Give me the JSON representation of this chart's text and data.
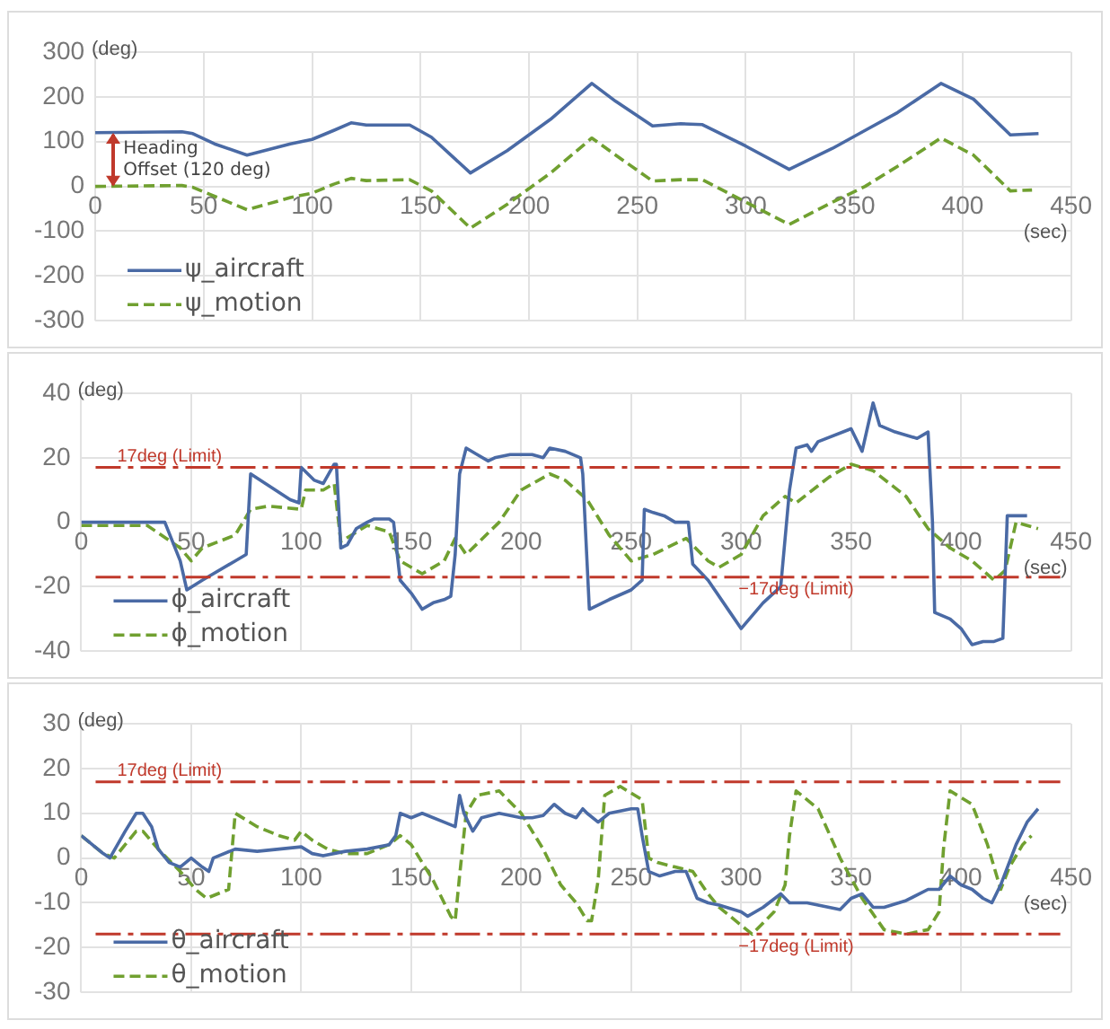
{
  "chart_data": [
    {
      "type": "line",
      "xlabel": "(sec)",
      "ylabel": "(deg)",
      "xlim": [
        0,
        450
      ],
      "xticks": [
        0,
        50,
        100,
        150,
        200,
        250,
        300,
        350,
        400,
        450
      ],
      "ylim": [
        -300,
        300
      ],
      "yticks": [
        -300,
        -200,
        -100,
        0,
        100,
        200,
        300
      ],
      "grid": true,
      "legend": "bottom left",
      "marker": "none",
      "annotations": [
        {
          "text": "Heading Offset (120 deg)",
          "x": 8,
          "y": 120
        }
      ],
      "series": [
        {
          "name": "ψ_aircraft",
          "color": "#4a6aa5",
          "line_style": "solid",
          "x": [
            0,
            40,
            45,
            55,
            70,
            90,
            100,
            110,
            118,
            125,
            145,
            155,
            173,
            190,
            210,
            229,
            240,
            257,
            270,
            280,
            300,
            320,
            340,
            355,
            370,
            390,
            405,
            422,
            435
          ],
          "values": [
            120,
            122,
            118,
            95,
            70,
            95,
            105,
            125,
            142,
            137,
            137,
            110,
            30,
            80,
            150,
            230,
            190,
            135,
            140,
            138,
            90,
            38,
            85,
            125,
            165,
            230,
            195,
            115,
            118
          ]
        },
        {
          "name": "ψ_motion",
          "color": "#70a030",
          "line_style": "dashed",
          "x": [
            0,
            40,
            45,
            70,
            90,
            100,
            110,
            118,
            125,
            145,
            155,
            173,
            190,
            210,
            229,
            240,
            257,
            270,
            280,
            300,
            320,
            340,
            355,
            370,
            390,
            405,
            422,
            432
          ],
          "values": [
            0,
            2,
            -2,
            -52,
            -25,
            -15,
            5,
            18,
            13,
            15,
            -10,
            -93,
            -40,
            30,
            108,
            70,
            12,
            15,
            15,
            -35,
            -85,
            -35,
            0,
            45,
            108,
            70,
            -10,
            -8
          ]
        }
      ]
    },
    {
      "type": "line",
      "xlabel": "(sec)",
      "ylabel": "(deg)",
      "xlim": [
        0,
        450
      ],
      "xticks": [
        0,
        50,
        100,
        150,
        200,
        250,
        300,
        350,
        400,
        450
      ],
      "ylim": [
        -40,
        40
      ],
      "yticks": [
        -40,
        -20,
        0,
        20,
        40
      ],
      "grid": true,
      "legend": "bottom left",
      "marker": "none",
      "ref_lines": [
        {
          "axis": "y",
          "value": 17,
          "label": "17deg (Limit)",
          "color": "#c0392b",
          "line_style": "dashed"
        },
        {
          "axis": "y",
          "value": -17,
          "label": "−17deg (Limit)",
          "color": "#c0392b",
          "line_style": "dashed"
        }
      ],
      "series": [
        {
          "name": "ϕ_aircraft",
          "color": "#4a6aa5",
          "line_style": "solid",
          "x": [
            0,
            38,
            45,
            48,
            55,
            70,
            75,
            77,
            95,
            99,
            100,
            106,
            110,
            115,
            116,
            118,
            121,
            125,
            130,
            133,
            140,
            142,
            145,
            150,
            155,
            160,
            165,
            168,
            170,
            172,
            175,
            180,
            185,
            188,
            195,
            205,
            210,
            213,
            220,
            227,
            228,
            231,
            240,
            250,
            255,
            256,
            260,
            265,
            270,
            276,
            278,
            285,
            295,
            300,
            310,
            318,
            322,
            325,
            330,
            332,
            335,
            350,
            355,
            360,
            363,
            370,
            380,
            385,
            387,
            388,
            395,
            400,
            405,
            410,
            415,
            419,
            421,
            430
          ],
          "values": [
            0,
            0,
            -12,
            -21,
            -18,
            -12,
            -10,
            15,
            7,
            6,
            17,
            13,
            12,
            18,
            18,
            -8,
            -7,
            -2,
            0,
            1,
            1,
            0,
            -18,
            -22,
            -27,
            -25,
            -24,
            -23,
            -10,
            15,
            23,
            21,
            19,
            20,
            21,
            21,
            20,
            23,
            22,
            20,
            15,
            -27,
            -24,
            -21,
            -18,
            4,
            3,
            2,
            0,
            0,
            -13,
            -18,
            -28,
            -33,
            -25,
            -20,
            10,
            23,
            24,
            22,
            25,
            29,
            22,
            37,
            30,
            28,
            26,
            28,
            0,
            -28,
            -30,
            -33,
            -38,
            -37,
            -37,
            -36,
            2,
            2
          ]
        },
        {
          "name": "ϕ_motion",
          "color": "#70a030",
          "line_style": "dashed",
          "x": [
            0,
            30,
            45,
            50,
            55,
            70,
            77,
            85,
            100,
            102,
            110,
            115,
            118,
            130,
            140,
            145,
            155,
            165,
            170,
            175,
            190,
            200,
            213,
            220,
            230,
            240,
            250,
            260,
            275,
            285,
            290,
            300,
            310,
            320,
            325,
            340,
            350,
            360,
            375,
            385,
            395,
            405,
            415,
            420,
            425,
            430,
            435
          ],
          "values": [
            -1,
            -1,
            -8,
            -12,
            -8,
            -4,
            4,
            5,
            4,
            10,
            10,
            12,
            -6,
            -1,
            -3,
            -12,
            -16,
            -12,
            -5,
            -10,
            0,
            10,
            15,
            13,
            7,
            -4,
            -12,
            -10,
            -5,
            -12,
            -14,
            -10,
            2,
            8,
            6,
            14,
            18,
            16,
            8,
            -2,
            -8,
            -12,
            -18,
            -15,
            0,
            -1,
            -2
          ]
        }
      ]
    },
    {
      "type": "line",
      "xlabel": "(sec)",
      "ylabel": "(deg)",
      "xlim": [
        0,
        450
      ],
      "xticks": [
        0,
        50,
        100,
        150,
        200,
        250,
        300,
        350,
        400,
        450
      ],
      "ylim": [
        -30,
        30
      ],
      "yticks": [
        -30,
        -20,
        -10,
        0,
        10,
        20,
        30
      ],
      "grid": true,
      "legend": "bottom left",
      "marker": "none",
      "ref_lines": [
        {
          "axis": "y",
          "value": 17,
          "label": "17deg (Limit)",
          "color": "#c0392b",
          "line_style": "dashed"
        },
        {
          "axis": "y",
          "value": -17,
          "label": "−17deg (Limit)",
          "color": "#c0392b",
          "line_style": "dashed"
        }
      ],
      "series": [
        {
          "name": "θ_aircraft",
          "color": "#4a6aa5",
          "line_style": "solid",
          "x": [
            0,
            5,
            10,
            13,
            20,
            25,
            28,
            32,
            35,
            40,
            45,
            50,
            55,
            58,
            60,
            70,
            80,
            100,
            105,
            110,
            120,
            130,
            140,
            143,
            145,
            150,
            155,
            165,
            170,
            172,
            174,
            178,
            182,
            190,
            200,
            205,
            210,
            215,
            220,
            225,
            228,
            230,
            235,
            240,
            250,
            253,
            255,
            258,
            263,
            270,
            275,
            280,
            285,
            290,
            300,
            303,
            310,
            318,
            322,
            330,
            345,
            350,
            355,
            360,
            365,
            375,
            385,
            390,
            395,
            400,
            405,
            410,
            414,
            418,
            425,
            430,
            435
          ],
          "values": [
            5,
            3,
            1,
            0,
            6,
            10,
            10,
            7,
            2,
            -1,
            -2,
            0,
            -2,
            -3,
            0,
            2,
            1.5,
            2.5,
            1,
            0.5,
            1.5,
            2,
            3,
            5,
            10,
            9,
            10,
            8,
            7,
            14,
            10,
            6,
            9,
            10,
            9,
            9,
            9.5,
            12,
            10,
            9,
            11,
            10,
            8,
            10,
            11,
            11,
            5,
            -3,
            -4,
            -3,
            -3,
            -9,
            -10,
            -10.5,
            -12,
            -13,
            -11,
            -8,
            -10,
            -10,
            -11.5,
            -9,
            -8,
            -11,
            -11,
            -9.5,
            -7,
            -7,
            -4,
            -6,
            -7,
            -9,
            -10,
            -6,
            3,
            8,
            11
          ]
        },
        {
          "name": "θ_motion",
          "color": "#70a030",
          "line_style": "dashed",
          "x": [
            0,
            10,
            15,
            25,
            28,
            35,
            45,
            52,
            57,
            62,
            67,
            70,
            80,
            90,
            97,
            100,
            105,
            112,
            120,
            130,
            140,
            145,
            150,
            160,
            168,
            170,
            172,
            175,
            180,
            190,
            200,
            210,
            218,
            225,
            230,
            232,
            235,
            238,
            245,
            255,
            258,
            262,
            270,
            278,
            285,
            290,
            300,
            305,
            315,
            320,
            322,
            325,
            335,
            345,
            355,
            365,
            375,
            385,
            390,
            392,
            395,
            405,
            412,
            418,
            422,
            428,
            432
          ],
          "values": [
            5,
            1,
            0,
            6,
            6,
            2,
            -3,
            -7,
            -9,
            -8,
            -7,
            10,
            7,
            5,
            4,
            6,
            4,
            2,
            1,
            1,
            3,
            5,
            3,
            -5,
            -13,
            -14,
            -4,
            10,
            14,
            15,
            10,
            2,
            -6,
            -10,
            -14,
            -14,
            -5,
            14,
            16,
            13,
            0,
            -1,
            -2,
            -3,
            -8,
            -11,
            -15,
            -17,
            -12,
            -6,
            5,
            15,
            11,
            0,
            -9,
            -16,
            -17,
            -16,
            -12,
            2,
            15,
            12,
            3,
            -7,
            -2,
            3,
            5
          ]
        }
      ]
    }
  ]
}
